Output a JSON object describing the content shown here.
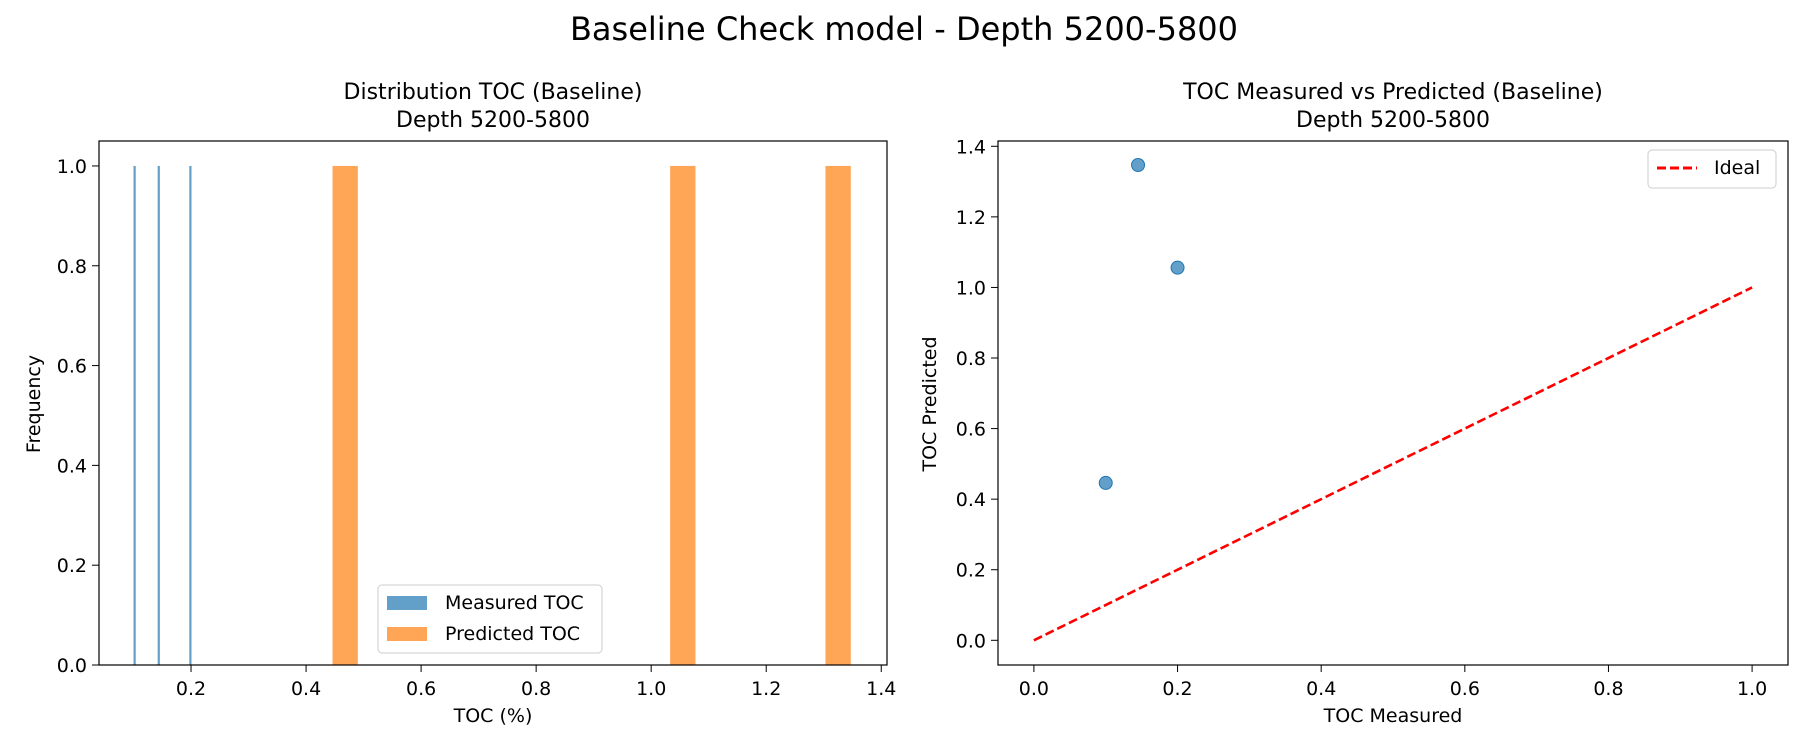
{
  "figure": {
    "suptitle": "Baseline Check model - Depth 5200-5800"
  },
  "colors": {
    "measured": "#1f77b4",
    "predicted": "#ff7f0e",
    "ideal": "#ff0000",
    "axis": "#000000"
  },
  "chart_data": [
    {
      "type": "bar",
      "subtype": "histogram",
      "title_line1": "Distribution TOC (Baseline)",
      "title_line2": "Depth 5200-5800",
      "xlabel": "TOC (%)",
      "ylabel": "Frequency",
      "xlim": [
        0.04,
        1.41
      ],
      "ylim": [
        0,
        1.05
      ],
      "xticks": [
        0.2,
        0.4,
        0.6,
        0.8,
        1.0,
        1.2,
        1.4
      ],
      "xtick_labels": [
        "0.2",
        "0.4",
        "0.6",
        "0.8",
        "1.0",
        "1.2",
        "1.4"
      ],
      "yticks": [
        0.0,
        0.2,
        0.4,
        0.6,
        0.8,
        1.0
      ],
      "ytick_labels": [
        "0.0",
        "0.2",
        "0.4",
        "0.6",
        "0.8",
        "1.0"
      ],
      "legend_position": "lower center",
      "series": [
        {
          "name": "Measured TOC",
          "color": "#1f77b4",
          "bins": [
            {
              "x0": 0.1,
              "x1": 0.103,
              "count": 1
            },
            {
              "x0": 0.142,
              "x1": 0.145,
              "count": 1
            },
            {
              "x0": 0.197,
              "x1": 0.2,
              "count": 1
            }
          ]
        },
        {
          "name": "Predicted TOC",
          "color": "#ff7f0e",
          "bins": [
            {
              "x0": 0.446,
              "x1": 0.49,
              "count": 1
            },
            {
              "x0": 1.033,
              "x1": 1.077,
              "count": 1
            },
            {
              "x0": 1.303,
              "x1": 1.347,
              "count": 1
            }
          ]
        }
      ]
    },
    {
      "type": "scatter",
      "title_line1": "TOC Measured vs Predicted (Baseline)",
      "title_line2": "Depth 5200-5800",
      "xlabel": "TOC Measured",
      "ylabel": "TOC Predicted",
      "xlim": [
        -0.05,
        1.05
      ],
      "ylim": [
        -0.07,
        1.415
      ],
      "xticks": [
        0.0,
        0.2,
        0.4,
        0.6,
        0.8,
        1.0
      ],
      "xtick_labels": [
        "0.0",
        "0.2",
        "0.4",
        "0.6",
        "0.8",
        "1.0"
      ],
      "yticks": [
        0.0,
        0.2,
        0.4,
        0.6,
        0.8,
        1.0,
        1.2,
        1.4
      ],
      "ytick_labels": [
        "0.0",
        "0.2",
        "0.4",
        "0.6",
        "0.8",
        "1.0",
        "1.2",
        "1.4"
      ],
      "legend_position": "upper right",
      "points": [
        {
          "x": 0.1,
          "y": 0.446
        },
        {
          "x": 0.145,
          "y": 1.347
        },
        {
          "x": 0.2,
          "y": 1.056
        }
      ],
      "ideal_line": {
        "name": "Ideal",
        "x": [
          0.0,
          1.0
        ],
        "y": [
          0.0,
          1.0
        ]
      }
    }
  ]
}
